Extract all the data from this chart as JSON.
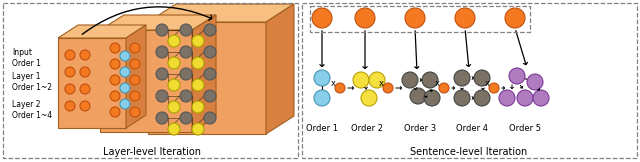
{
  "fig_width": 6.4,
  "fig_height": 1.62,
  "dpi": 100,
  "orange": "#F47920",
  "orange_edge": "#C05010",
  "blue": "#87CEEB",
  "blue_edge": "#4A90B0",
  "yellow": "#F5E040",
  "yellow_edge": "#B8A000",
  "gray": "#7B7265",
  "gray_edge": "#444444",
  "purple": "#B07CC0",
  "purple_edge": "#7B3A9B",
  "slab_color1": "#F0A060",
  "slab_color2": "#F0A060",
  "slab_color3": "#F0A060",
  "left_label": "Layer-level Iteration",
  "right_label": "Sentence-level Iteration",
  "order_labels": [
    "Order 1",
    "Order 2",
    "Order 3",
    "Order 4",
    "Order 5"
  ]
}
